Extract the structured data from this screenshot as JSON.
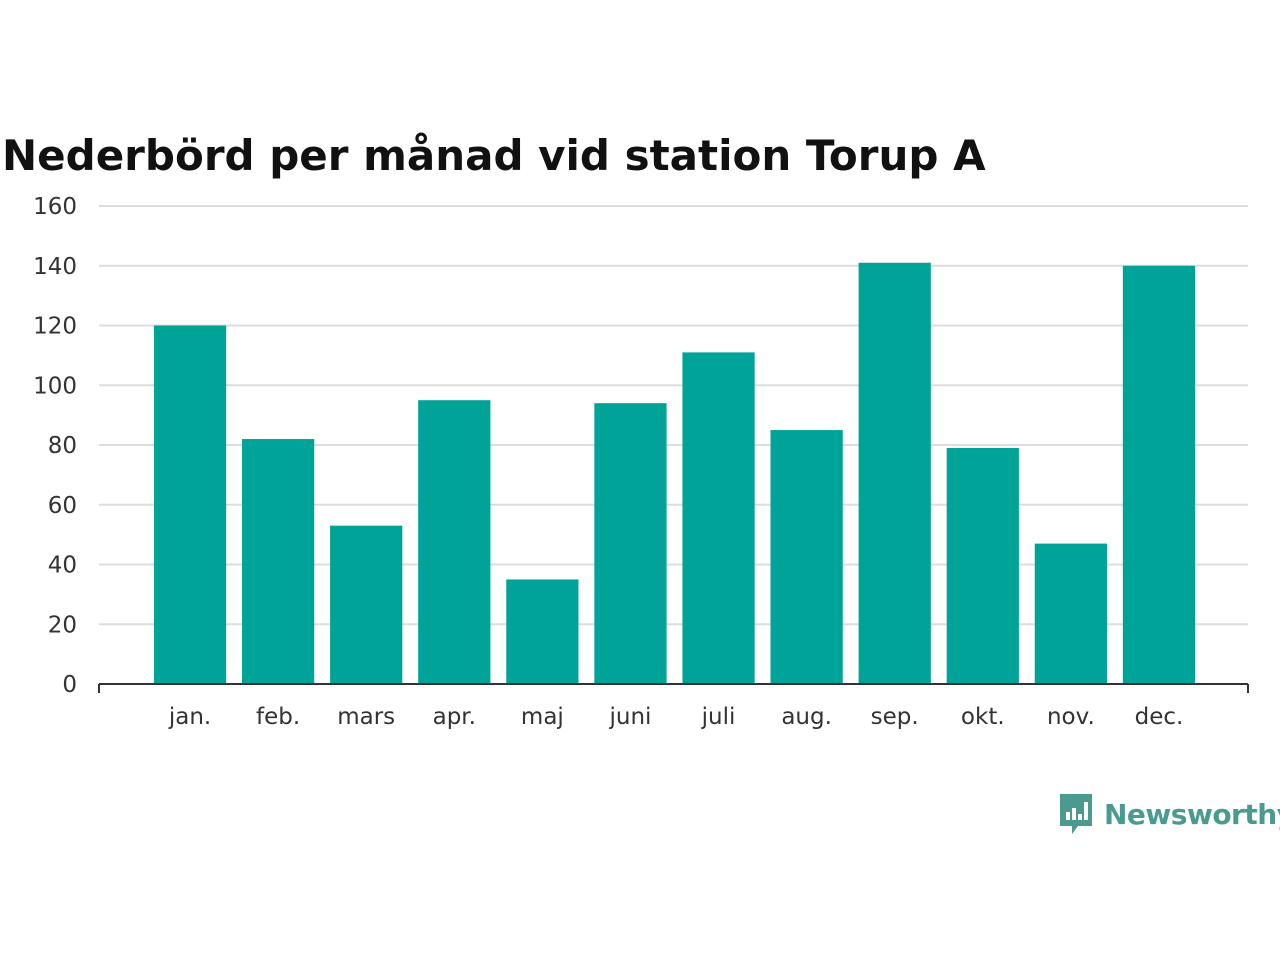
{
  "chart_data": {
    "type": "bar",
    "title": "Nederbörd per månad vid station Torup A",
    "xlabel": "",
    "ylabel": "",
    "categories": [
      "jan.",
      "feb.",
      "mars",
      "apr.",
      "maj",
      "juni",
      "juli",
      "aug.",
      "sep.",
      "okt.",
      "nov.",
      "dec."
    ],
    "values": [
      120,
      82,
      53,
      95,
      35,
      94,
      111,
      85,
      141,
      79,
      47,
      140
    ],
    "ylim": [
      0,
      160
    ],
    "yticks": [
      0,
      20,
      40,
      60,
      80,
      100,
      120,
      140,
      160
    ],
    "grid": true,
    "legend": "none",
    "bar_color": "#00a398",
    "grid_color": "#dddddd",
    "axis_color": "#333333"
  },
  "brand": {
    "name": "Newsworthy",
    "icon": "newsworthy-logo-icon",
    "color": "#4a9a90"
  }
}
